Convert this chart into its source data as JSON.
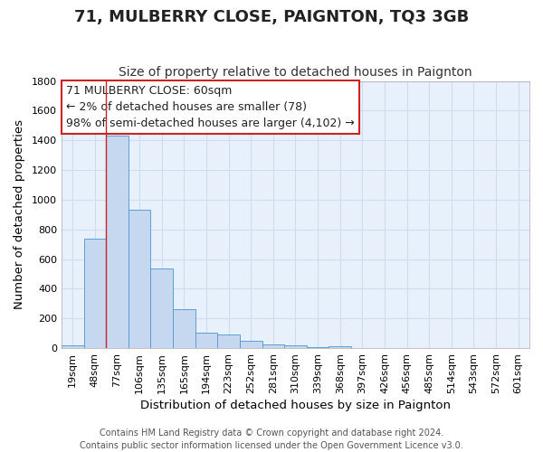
{
  "title": "71, MULBERRY CLOSE, PAIGNTON, TQ3 3GB",
  "subtitle": "Size of property relative to detached houses in Paignton",
  "xlabel": "Distribution of detached houses by size in Paignton",
  "ylabel": "Number of detached properties",
  "categories": [
    "19sqm",
    "48sqm",
    "77sqm",
    "106sqm",
    "135sqm",
    "165sqm",
    "194sqm",
    "223sqm",
    "252sqm",
    "281sqm",
    "310sqm",
    "339sqm",
    "368sqm",
    "397sqm",
    "426sqm",
    "456sqm",
    "485sqm",
    "514sqm",
    "543sqm",
    "572sqm",
    "601sqm"
  ],
  "values": [
    20,
    740,
    1430,
    935,
    535,
    265,
    105,
    90,
    50,
    25,
    20,
    10,
    15,
    3,
    3,
    3,
    3,
    3,
    3,
    3,
    3
  ],
  "bar_color": "#c5d8f0",
  "bar_edge_color": "#5a9fd4",
  "bg_color": "#e8f0fb",
  "grid_color": "#d0ddf0",
  "vline_x_idx": 2,
  "vline_color": "#cc2222",
  "annotation_text": "71 MULBERRY CLOSE: 60sqm\n← 2% of detached houses are smaller (78)\n98% of semi-detached houses are larger (4,102) →",
  "annotation_box_facecolor": "#ffffff",
  "annotation_box_edgecolor": "#cc2222",
  "ylim": [
    0,
    1800
  ],
  "yticks": [
    0,
    200,
    400,
    600,
    800,
    1000,
    1200,
    1400,
    1600,
    1800
  ],
  "footer": "Contains HM Land Registry data © Crown copyright and database right 2024.\nContains public sector information licensed under the Open Government Licence v3.0.",
  "title_fontsize": 13,
  "subtitle_fontsize": 10,
  "axis_label_fontsize": 9.5,
  "tick_fontsize": 8,
  "annotation_fontsize": 9,
  "footer_fontsize": 7
}
